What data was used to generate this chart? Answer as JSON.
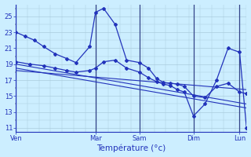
{
  "background_color": "#cceeff",
  "grid_color": "#aaccdd",
  "line_color": "#2233bb",
  "vline_color": "#334488",
  "ylim": [
    10.5,
    26.5
  ],
  "yticks": [
    11,
    13,
    15,
    17,
    19,
    21,
    23,
    25
  ],
  "xlabel": "Température (°c)",
  "xlim": [
    0,
    1.0
  ],
  "day_positions": [
    0.0,
    0.345,
    0.535,
    0.77,
    0.97
  ],
  "day_labels": [
    "Ven",
    "Mar",
    "Sam",
    "Dim",
    "Lun"
  ],
  "line1_x": [
    0.0,
    0.04,
    0.08,
    0.12,
    0.17,
    0.22,
    0.26,
    0.32,
    0.345,
    0.38,
    0.43,
    0.48,
    0.535,
    0.575,
    0.61,
    0.64,
    0.67,
    0.7,
    0.73,
    0.77,
    0.82,
    0.87,
    0.92,
    0.97,
    1.0
  ],
  "line1_y": [
    23.0,
    22.5,
    22.0,
    21.2,
    20.3,
    19.7,
    19.2,
    21.2,
    25.5,
    26.0,
    24.0,
    19.5,
    19.2,
    18.5,
    17.2,
    16.7,
    16.6,
    16.5,
    16.2,
    15.0,
    14.8,
    16.2,
    16.6,
    15.5,
    15.3
  ],
  "line2_x": [
    0.0,
    0.06,
    0.12,
    0.17,
    0.22,
    0.26,
    0.32,
    0.345,
    0.38,
    0.43,
    0.48,
    0.535,
    0.575,
    0.61,
    0.64,
    0.67,
    0.7,
    0.73,
    0.77,
    0.82,
    0.87,
    0.92,
    0.97,
    1.0
  ],
  "line2_y": [
    19.3,
    19.0,
    18.8,
    18.5,
    18.2,
    18.0,
    18.2,
    18.5,
    19.3,
    19.5,
    18.5,
    18.0,
    17.3,
    16.8,
    16.5,
    16.3,
    15.8,
    15.5,
    12.5,
    14.0,
    17.0,
    21.0,
    20.5,
    11.0
  ],
  "line3_x": [
    0.0,
    1.0
  ],
  "line3_y": [
    19.0,
    14.0
  ],
  "line4_x": [
    0.0,
    1.0
  ],
  "line4_y": [
    18.5,
    13.5
  ],
  "line5_x": [
    0.0,
    1.0
  ],
  "line5_y": [
    18.2,
    15.8
  ]
}
